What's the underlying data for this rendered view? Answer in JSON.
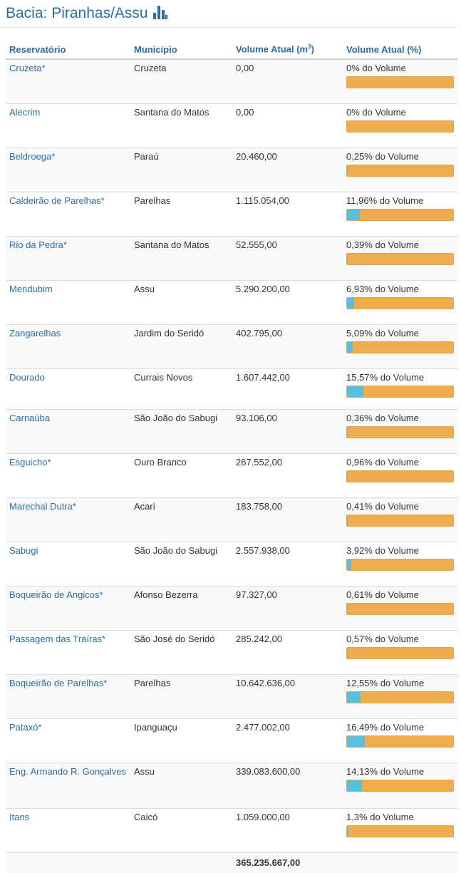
{
  "page": {
    "title": "Bacia: Piranhas/Assu"
  },
  "table": {
    "headers": {
      "reservatorio": "Reservatório",
      "municipio": "Município",
      "volume_m3": "Volume Atual (m",
      "volume_m3_sup": "3",
      "volume_m3_close": ")",
      "volume_pct": "Volume Atual (%)"
    },
    "rows": [
      {
        "reservatorio": "Cruzeta*",
        "municipio": "Cruzeta",
        "volume": "0,00",
        "pct_text": "0% do Volume",
        "pct": 0
      },
      {
        "reservatorio": "Alecrim",
        "municipio": "Santana do Matos",
        "volume": "0,00",
        "pct_text": "0% do Volume",
        "pct": 0
      },
      {
        "reservatorio": "Beldroega*",
        "municipio": "Paraú",
        "volume": "20.460,00",
        "pct_text": "0,25% do Volume",
        "pct": 0.25
      },
      {
        "reservatorio": "Caldeirão de Parelhas*",
        "municipio": "Parelhas",
        "volume": "1.115.054,00",
        "pct_text": "11,96% do Volume",
        "pct": 11.96
      },
      {
        "reservatorio": "Rio da Pedra*",
        "municipio": "Santana do Matos",
        "volume": "52.555,00",
        "pct_text": "0,39% do Volume",
        "pct": 0.39
      },
      {
        "reservatorio": "Mendubim",
        "municipio": "Assu",
        "volume": "5.290.200,00",
        "pct_text": "6,93% do Volume",
        "pct": 6.93
      },
      {
        "reservatorio": "Zangarelhas",
        "municipio": "Jardim do Seridó",
        "volume": "402.795,00",
        "pct_text": "5,09% do Volume",
        "pct": 5.09
      },
      {
        "reservatorio": "Dourado",
        "municipio": "Currais Novos",
        "volume": "1.607.442,00",
        "pct_text": "15,57% do Volume",
        "pct": 15.57
      },
      {
        "reservatorio": "Carnaúba",
        "municipio": "São João do Sabugi",
        "volume": "93.106,00",
        "pct_text": "0,36% do Volume",
        "pct": 0.36
      },
      {
        "reservatorio": "Esguicho*",
        "municipio": "Ouro Branco",
        "volume": "267.552,00",
        "pct_text": "0,96% do Volume",
        "pct": 0.96
      },
      {
        "reservatorio": "Marechal Dutra*",
        "municipio": "Acari",
        "volume": "183.758,00",
        "pct_text": "0,41% do Volume",
        "pct": 0.41
      },
      {
        "reservatorio": "Sabugi",
        "municipio": "São João do Sabugi",
        "volume": "2.557.938,00",
        "pct_text": "3,92% do Volume",
        "pct": 3.92
      },
      {
        "reservatorio": "Boqueirão de Angicos*",
        "municipio": "Afonso Bezerra",
        "volume": "97.327,00",
        "pct_text": "0,61% do Volume",
        "pct": 0.61
      },
      {
        "reservatorio": "Passagem das Traíras*",
        "municipio": "São José do Seridó",
        "volume": "285.242,00",
        "pct_text": "0,57% do Volume",
        "pct": 0.57
      },
      {
        "reservatorio": "Boqueirão de Parelhas*",
        "municipio": "Parelhas",
        "volume": "10.642.636,00",
        "pct_text": "12,55% do Volume",
        "pct": 12.55
      },
      {
        "reservatorio": "Pataxó*",
        "municipio": "Ipanguaçu",
        "volume": "2.477.002,00",
        "pct_text": "16,49% do Volume",
        "pct": 16.49
      },
      {
        "reservatorio": "Eng. Armando R. Gonçalves",
        "municipio": "Assu",
        "volume": "339.083.600,00",
        "pct_text": "14,13% do Volume",
        "pct": 14.13
      },
      {
        "reservatorio": "Itans",
        "municipio": "Caicó",
        "volume": "1.059.000,00",
        "pct_text": "1,3% do Volume",
        "pct": 1.3
      }
    ],
    "total": "365.235.667,00"
  },
  "colors": {
    "link": "#2a6ea6",
    "bar_empty": "#f0ad4e",
    "bar_fill": "#5bc0de"
  },
  "icons": {
    "title_icon": "bar-chart-icon"
  }
}
